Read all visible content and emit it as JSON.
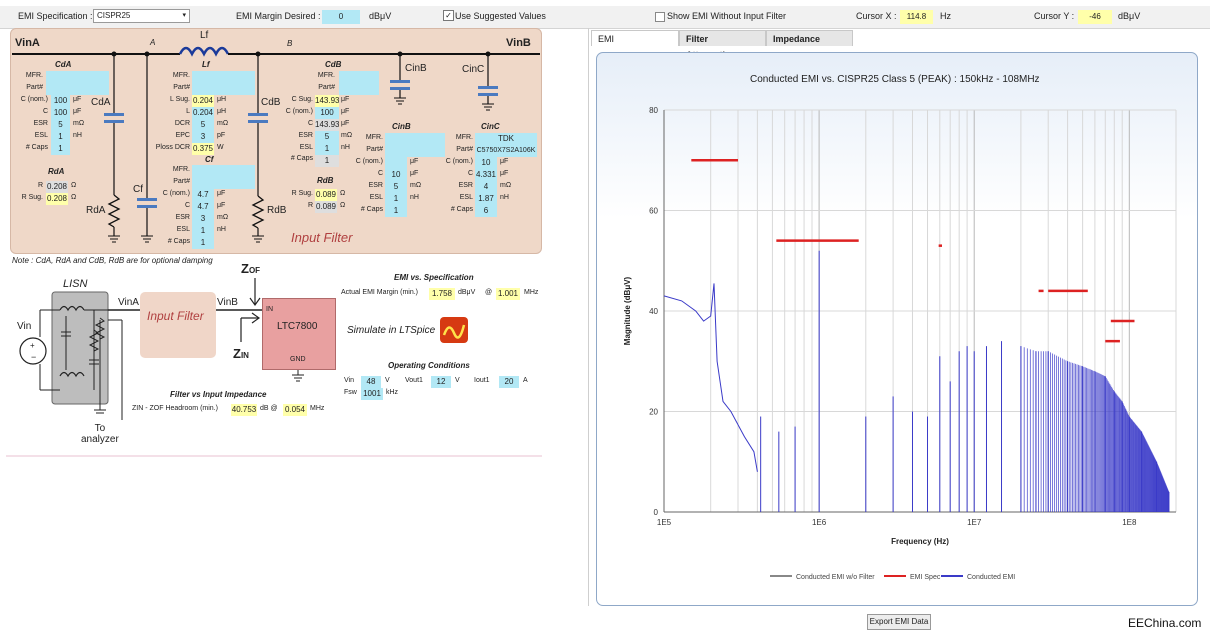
{
  "topbar": {
    "emi_spec_label": "EMI Specification :",
    "emi_spec_value": "CISPR25",
    "emi_margin_label": "EMI Margin Desired :",
    "emi_margin_value": "0",
    "emi_margin_unit": "dBμV",
    "use_suggested_label": "Use Suggested Values",
    "use_suggested_checked": true,
    "show_emi_label": "Show EMI Without Input Filter",
    "show_emi_checked": false,
    "cursor_x_label": "Cursor X :",
    "cursor_x_value": "114.8",
    "cursor_x_unit": "Hz",
    "cursor_y_label": "Cursor Y :",
    "cursor_y_value": "-46",
    "cursor_y_unit": "dBμV"
  },
  "schematic": {
    "vina": "VinA",
    "vinb": "VinB",
    "node_a": "A",
    "node_b": "B",
    "lf": "Lf",
    "cda": "CdA",
    "cdb": "CdB",
    "cinb": "CinB",
    "cinc": "CinC",
    "cf": "Cf",
    "rda": "RdA",
    "rdb": "RdB",
    "input_filter": "Input Filter"
  },
  "cda_block": {
    "title": "CdA",
    "mfr_label": "MFR.",
    "part_label": "Part#",
    "c_nom_label": "C (nom.)",
    "c_nom": "100",
    "c_nom_unit": "μF",
    "c_label": "C",
    "c": "100",
    "c_unit": "μF",
    "esr_label": "ESR",
    "esr": "5",
    "esr_unit": "mΩ",
    "esl_label": "ESL",
    "esl": "1",
    "esl_unit": "nH",
    "caps_label": "# Caps",
    "caps": "1"
  },
  "rda_block": {
    "title": "RdA",
    "r_label": "R",
    "r": "0.208",
    "r_unit": "Ω",
    "rsug_label": "R Sug.",
    "rsug": "0.208",
    "rsug_unit": "Ω"
  },
  "lf_block": {
    "title": "Lf",
    "mfr_label": "MFR.",
    "part_label": "Part#",
    "lsug_label": "L Sug.",
    "lsug": "0.204",
    "lsug_unit": "μH",
    "l_label": "L",
    "l": "0.204",
    "l_unit": "μH",
    "dcr_label": "DCR",
    "dcr": "5",
    "dcr_unit": "mΩ",
    "epc_label": "EPC",
    "epc": "3",
    "epc_unit": "pF",
    "ploss_label": "Ploss DCR",
    "ploss": "0.375",
    "ploss_unit": "W"
  },
  "cf_block": {
    "title": "Cf",
    "mfr_label": "MFR.",
    "part_label": "Part#",
    "c_nom_label": "C (nom.)",
    "c_nom": "4.7",
    "c_nom_unit": "μF",
    "c_label": "C",
    "c": "4.7",
    "c_unit": "μF",
    "esr_label": "ESR",
    "esr": "3",
    "esr_unit": "mΩ",
    "esl_label": "ESL",
    "esl": "1",
    "esl_unit": "nH",
    "caps_label": "# Caps",
    "caps": "1"
  },
  "cdb_block": {
    "title": "CdB",
    "mfr_label": "MFR.",
    "part_label": "Part#",
    "csug_label": "C Sug.",
    "csug": "143.93",
    "csug_unit": "μF",
    "c_nom_label": "C (nom.)",
    "c_nom": "100",
    "c_nom_unit": "μF",
    "c_label": "C",
    "c": "143.93",
    "c_unit": "μF",
    "esr_label": "ESR",
    "esr": "5",
    "esr_unit": "mΩ",
    "esl_label": "ESL",
    "esl": "1",
    "esl_unit": "nH",
    "caps_label": "# Caps",
    "caps": "1"
  },
  "rdb_block": {
    "title": "RdB",
    "rsug_label": "R Sug.",
    "rsug": "0.089",
    "rsug_unit": "Ω",
    "r_label": "R",
    "r": "0.089",
    "r_unit": "Ω"
  },
  "cinb_block": {
    "title": "CinB",
    "mfr_label": "MFR.",
    "part_label": "Part#",
    "c_nom_label": "C (nom.)",
    "c_nom_unit": "μF",
    "c_label": "C",
    "c": "10",
    "c_unit": "μF",
    "esr_label": "ESR",
    "esr": "5",
    "esr_unit": "mΩ",
    "esl_label": "ESL",
    "esl": "1",
    "esl_unit": "nH",
    "caps_label": "# Caps",
    "caps": "1"
  },
  "cinc_block": {
    "title": "CinC",
    "mfr_label": "MFR.",
    "mfr": "TDK",
    "part_label": "Part#",
    "part": "C5750X7S2A106K",
    "c_nom_label": "C (nom.)",
    "c_nom": "10",
    "c_nom_unit": "μF",
    "c_label": "C",
    "c": "4.331",
    "c_unit": "μF",
    "esr_label": "ESR",
    "esr": "4",
    "esr_unit": "mΩ",
    "esl_label": "ESL",
    "esl": "1.87",
    "esl_unit": "nH",
    "caps_label": "# Caps",
    "caps": "6"
  },
  "note": "Note : CdA, RdA and CdB, RdB are for optional damping",
  "lower": {
    "lisn": "LISN",
    "vin": "Vin",
    "vina": "VinA",
    "vinb": "VinB",
    "input_filter": "Input Filter",
    "ic_in": "IN",
    "ic_name": "LTC7800",
    "ic_gnd": "GND",
    "zof": "Z",
    "zof_sub": "OF",
    "zin": "Z",
    "zin_sub": "IN",
    "to_analyzer": "To\nanalyzer",
    "simulate": "Simulate in LTSpice",
    "emi_vs_spec_title": "EMI vs. Specification",
    "actual_margin_label": "Actual EMI Margin (min.)",
    "actual_margin": "1.758",
    "actual_margin_unit": "dBμV",
    "at": "@",
    "margin_freq": "1.001",
    "margin_freq_unit": "MHz",
    "op_title": "Operating Conditions",
    "vin_label": "Vin",
    "vin_val": "48",
    "vin_unit": "V",
    "vout_label": "Vout1",
    "vout_val": "12",
    "vout_unit": "V",
    "iout_label": "Iout1",
    "iout_val": "20",
    "iout_unit": "A",
    "fsw_label": "Fsw",
    "fsw_val": "1001",
    "fsw_unit": "kHz",
    "fvi_title": "Filter vs Input Impedance",
    "zin_label": "ZIN - ZOF Headroom (min.)",
    "zin_val": "40.753",
    "zin_unit": "dB @",
    "zin_freq": "0.054",
    "zin_freq_unit": "MHz"
  },
  "tabs": [
    "EMI",
    "Filter Attenuation",
    "Impedance"
  ],
  "export_button": "Export EMI Data",
  "watermark": "EEChina.com",
  "chart_data": {
    "type": "line",
    "title": "Conducted EMI vs. CISPR25 Class 5 (PEAK) : 150kHz - 108MHz",
    "xlabel": "Frequency (Hz)",
    "ylabel": "Magnitude (dBμV)",
    "xscale": "log",
    "xlim": [
      100000,
      200000000
    ],
    "ylim": [
      0,
      80
    ],
    "x_ticks": [
      "1E5",
      "1E6",
      "1E7",
      "1E8"
    ],
    "y_ticks": [
      "0",
      "20",
      "40",
      "60",
      "80"
    ],
    "grid": true,
    "legend_position": "bottom",
    "legend": [
      "Conducted EMI w/o Filter",
      "EMI Spec",
      "Conducted EMI"
    ],
    "colors": {
      "spec": "#dd2222",
      "emi": "#3a3ac8",
      "wo_filter": "#888888"
    },
    "spec_limits": [
      {
        "f_start": 150000,
        "f_end": 300000,
        "level": 70
      },
      {
        "f_start": 530000,
        "f_end": 1800000,
        "level": 54
      },
      {
        "f_start": 5900000,
        "f_end": 6200000,
        "level": 53
      },
      {
        "f_start": 26000000,
        "f_end": 28000000,
        "level": 44
      },
      {
        "f_start": 30000000,
        "f_end": 54000000,
        "level": 44
      },
      {
        "f_start": 70000000,
        "f_end": 87000000,
        "level": 34
      },
      {
        "f_start": 76000000,
        "f_end": 108000000,
        "level": 38
      }
    ],
    "series": [
      {
        "name": "Conducted EMI",
        "envelope": [
          [
            100000,
            43
          ],
          [
            130000,
            42
          ],
          [
            160000,
            40
          ],
          [
            180000,
            38
          ],
          [
            200000,
            39
          ],
          [
            210000,
            45.5
          ],
          [
            220000,
            30
          ],
          [
            240000,
            22
          ],
          [
            270000,
            20
          ],
          [
            330000,
            15
          ],
          [
            380000,
            12
          ],
          [
            400000,
            8
          ]
        ],
        "spikes": [
          [
            420000,
            19
          ],
          [
            550000,
            16
          ],
          [
            700000,
            17
          ],
          [
            1001000,
            52
          ],
          [
            2000000,
            19
          ],
          [
            3000000,
            23
          ],
          [
            4000000,
            20
          ],
          [
            5000000,
            19
          ],
          [
            6000000,
            31
          ],
          [
            7000000,
            26
          ],
          [
            8000000,
            32
          ],
          [
            9000000,
            33
          ],
          [
            10000000,
            32
          ],
          [
            12000000,
            33
          ],
          [
            15000000,
            34
          ],
          [
            20000000,
            33
          ],
          [
            25000000,
            32
          ],
          [
            30000000,
            32
          ],
          [
            40000000,
            30
          ],
          [
            50000000,
            29
          ],
          [
            60000000,
            28
          ],
          [
            70000000,
            27
          ],
          [
            80000000,
            24
          ],
          [
            90000000,
            22
          ],
          [
            100000000,
            19
          ],
          [
            120000000,
            16
          ],
          [
            150000000,
            10
          ],
          [
            180000000,
            4
          ]
        ]
      }
    ]
  }
}
